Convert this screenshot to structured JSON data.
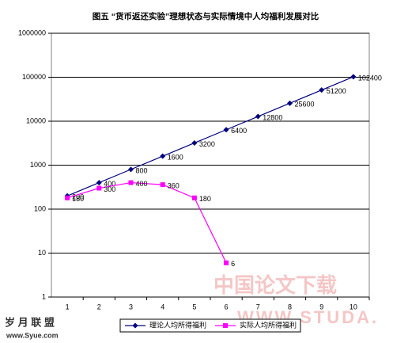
{
  "chart_data": {
    "type": "line",
    "title": "图五 “货币返还实验”理想状态与实际情境中人均福利发展对比",
    "categories": [
      "1",
      "2",
      "3",
      "4",
      "5",
      "6",
      "7",
      "8",
      "9",
      "10"
    ],
    "series": [
      {
        "name": "理论人均所得福利",
        "color": "#000080",
        "marker": "diamond",
        "values": [
          200,
          400,
          800,
          1600,
          3200,
          6400,
          12800,
          25600,
          51200,
          102400
        ]
      },
      {
        "name": "实际人均所得福利",
        "color": "#ff00ff",
        "marker": "square",
        "values": [
          180,
          300,
          400,
          360,
          180,
          6,
          null,
          null,
          null,
          null
        ]
      }
    ],
    "log_scale": true,
    "ylim": [
      1,
      1000000
    ],
    "yticks": [
      1,
      10,
      100,
      1000,
      10000,
      100000,
      1000000
    ],
    "grid": true,
    "legend": "bottom",
    "watermarks": [
      "岁 月 联 盟",
      "www.Syue.com",
      "中国论文下载",
      "WWW.STUDA."
    ]
  }
}
